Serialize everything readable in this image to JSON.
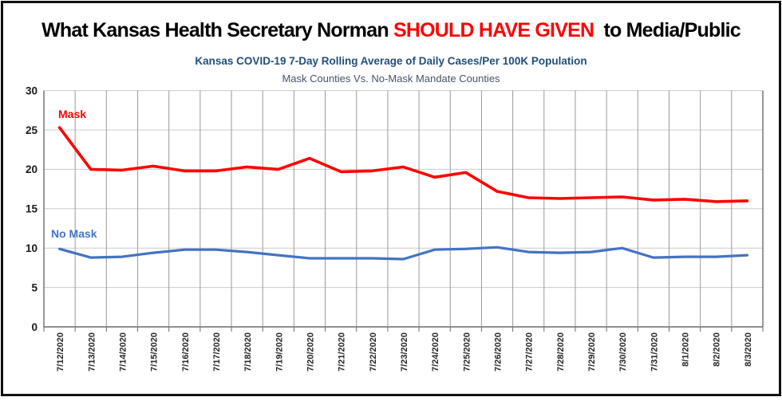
{
  "title": {
    "prefix": "What Kansas Health Secretary Norman ",
    "highlight": "SHOULD HAVE GIVEN",
    "suffix": "  to Media/Public",
    "highlight_color": "#ff0000"
  },
  "chart_data": {
    "type": "line",
    "title": "Kansas COVID-19 7-Day Rolling Average of Daily Cases/Per 100K Population",
    "subtitle": "Mask Counties Vs. No-Mask Mandate Counties",
    "xlabel": "",
    "ylabel": "",
    "ylim": [
      0,
      30
    ],
    "yticks": [
      0,
      5,
      10,
      15,
      20,
      25,
      30
    ],
    "grid": true,
    "legend_position": "inline-labels",
    "categories": [
      "7/12/2020",
      "7/13/2020",
      "7/14/2020",
      "7/15/2020",
      "7/16/2020",
      "7/17/2020",
      "7/18/2020",
      "7/19/2020",
      "7/20/2020",
      "7/21/2020",
      "7/22/2020",
      "7/23/2020",
      "7/24/2020",
      "7/25/2020",
      "7/26/2020",
      "7/27/2020",
      "7/28/2020",
      "7/29/2020",
      "7/30/2020",
      "7/31/2020",
      "8/1/2020",
      "8/2/2020",
      "8/3/2020"
    ],
    "series": [
      {
        "name": "Mask",
        "color": "#ff0000",
        "values": [
          25.3,
          20.0,
          19.9,
          20.4,
          19.8,
          19.8,
          20.3,
          20.0,
          21.4,
          19.7,
          19.8,
          20.3,
          19.0,
          19.6,
          17.2,
          16.4,
          16.3,
          16.4,
          16.5,
          16.1,
          16.2,
          15.9,
          16.0
        ]
      },
      {
        "name": "No Mask",
        "color": "#4472c4",
        "values": [
          9.9,
          8.8,
          8.9,
          9.4,
          9.8,
          9.8,
          9.5,
          9.1,
          8.7,
          8.7,
          8.7,
          8.6,
          9.8,
          9.9,
          10.1,
          9.5,
          9.4,
          9.5,
          10.0,
          8.8,
          8.9,
          8.9,
          9.1
        ]
      }
    ]
  }
}
